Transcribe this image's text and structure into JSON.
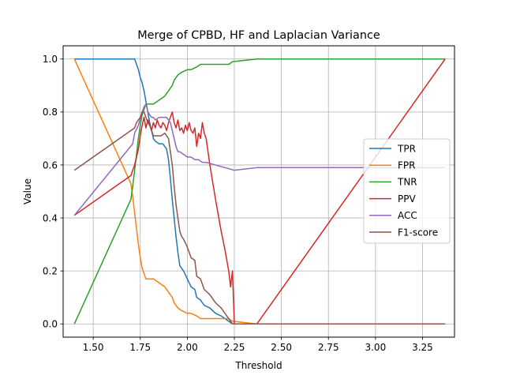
{
  "chart_data": {
    "type": "line",
    "title": "Merge of CPBD, HF and Laplacian Variance",
    "xlabel": "Threshold",
    "ylabel": "Value",
    "xlim": [
      1.34,
      3.42
    ],
    "ylim": [
      -0.05,
      1.05
    ],
    "xticks": [
      1.5,
      1.75,
      2.0,
      2.25,
      2.5,
      2.75,
      3.0,
      3.25
    ],
    "xtick_labels": [
      "1.50",
      "1.75",
      "2.00",
      "2.25",
      "2.50",
      "2.75",
      "3.00",
      "3.25"
    ],
    "yticks": [
      0.0,
      0.2,
      0.4,
      0.6,
      0.8,
      1.0
    ],
    "ytick_labels": [
      "0.0",
      "0.2",
      "0.4",
      "0.6",
      "0.8",
      "1.0"
    ],
    "grid": true,
    "legend_position": "center-right",
    "series": [
      {
        "name": "TPR",
        "color": "#1f77b4",
        "points": [
          [
            1.4,
            1.0
          ],
          [
            1.72,
            1.0
          ],
          [
            1.73,
            0.98
          ],
          [
            1.74,
            0.96
          ],
          [
            1.75,
            0.93
          ],
          [
            1.76,
            0.91
          ],
          [
            1.77,
            0.88
          ],
          [
            1.78,
            0.84
          ],
          [
            1.79,
            0.8
          ],
          [
            1.8,
            0.76
          ],
          [
            1.81,
            0.73
          ],
          [
            1.82,
            0.7
          ],
          [
            1.83,
            0.69
          ],
          [
            1.85,
            0.68
          ],
          [
            1.87,
            0.68
          ],
          [
            1.88,
            0.67
          ],
          [
            1.89,
            0.66
          ],
          [
            1.9,
            0.62
          ],
          [
            1.91,
            0.55
          ],
          [
            1.92,
            0.47
          ],
          [
            1.93,
            0.4
          ],
          [
            1.94,
            0.33
          ],
          [
            1.95,
            0.27
          ],
          [
            1.96,
            0.22
          ],
          [
            1.98,
            0.2
          ],
          [
            2.0,
            0.17
          ],
          [
            2.02,
            0.14
          ],
          [
            2.04,
            0.13
          ],
          [
            2.05,
            0.1
          ],
          [
            2.07,
            0.09
          ],
          [
            2.09,
            0.07
          ],
          [
            2.12,
            0.06
          ],
          [
            2.15,
            0.04
          ],
          [
            2.18,
            0.03
          ],
          [
            2.22,
            0.01
          ],
          [
            2.24,
            0.0
          ],
          [
            2.3,
            0.0
          ],
          [
            2.37,
            0.0
          ],
          [
            3.37,
            0.0
          ]
        ]
      },
      {
        "name": "FPR",
        "color": "#ff7f0e",
        "points": [
          [
            1.4,
            1.0
          ],
          [
            1.7,
            0.53
          ],
          [
            1.71,
            0.48
          ],
          [
            1.72,
            0.42
          ],
          [
            1.73,
            0.36
          ],
          [
            1.74,
            0.3
          ],
          [
            1.75,
            0.25
          ],
          [
            1.76,
            0.21
          ],
          [
            1.77,
            0.19
          ],
          [
            1.78,
            0.17
          ],
          [
            1.8,
            0.17
          ],
          [
            1.82,
            0.17
          ],
          [
            1.84,
            0.16
          ],
          [
            1.86,
            0.15
          ],
          [
            1.88,
            0.14
          ],
          [
            1.9,
            0.12
          ],
          [
            1.92,
            0.1
          ],
          [
            1.93,
            0.08
          ],
          [
            1.95,
            0.06
          ],
          [
            1.97,
            0.05
          ],
          [
            2.0,
            0.04
          ],
          [
            2.02,
            0.04
          ],
          [
            2.05,
            0.03
          ],
          [
            2.07,
            0.02
          ],
          [
            2.1,
            0.02
          ],
          [
            2.15,
            0.02
          ],
          [
            2.22,
            0.02
          ],
          [
            2.24,
            0.01
          ],
          [
            2.37,
            0.0
          ],
          [
            3.37,
            0.0
          ]
        ]
      },
      {
        "name": "TNR",
        "color": "#2ca02c",
        "points": [
          [
            1.4,
            0.0
          ],
          [
            1.7,
            0.47
          ],
          [
            1.71,
            0.52
          ],
          [
            1.72,
            0.58
          ],
          [
            1.73,
            0.64
          ],
          [
            1.74,
            0.7
          ],
          [
            1.75,
            0.75
          ],
          [
            1.76,
            0.79
          ],
          [
            1.77,
            0.81
          ],
          [
            1.78,
            0.83
          ],
          [
            1.8,
            0.83
          ],
          [
            1.82,
            0.83
          ],
          [
            1.84,
            0.84
          ],
          [
            1.86,
            0.85
          ],
          [
            1.88,
            0.86
          ],
          [
            1.9,
            0.88
          ],
          [
            1.92,
            0.9
          ],
          [
            1.93,
            0.92
          ],
          [
            1.95,
            0.94
          ],
          [
            1.97,
            0.95
          ],
          [
            2.0,
            0.96
          ],
          [
            2.02,
            0.96
          ],
          [
            2.05,
            0.97
          ],
          [
            2.07,
            0.98
          ],
          [
            2.1,
            0.98
          ],
          [
            2.15,
            0.98
          ],
          [
            2.22,
            0.98
          ],
          [
            2.24,
            0.99
          ],
          [
            2.37,
            1.0
          ],
          [
            3.37,
            1.0
          ]
        ]
      },
      {
        "name": "PPV",
        "color": "#d62728",
        "points": [
          [
            1.4,
            0.41
          ],
          [
            1.7,
            0.56
          ],
          [
            1.72,
            0.6
          ],
          [
            1.74,
            0.66
          ],
          [
            1.75,
            0.71
          ],
          [
            1.76,
            0.75
          ],
          [
            1.77,
            0.78
          ],
          [
            1.78,
            0.74
          ],
          [
            1.79,
            0.77
          ],
          [
            1.8,
            0.75
          ],
          [
            1.81,
            0.73
          ],
          [
            1.82,
            0.76
          ],
          [
            1.83,
            0.74
          ],
          [
            1.84,
            0.77
          ],
          [
            1.85,
            0.75
          ],
          [
            1.86,
            0.74
          ],
          [
            1.87,
            0.76
          ],
          [
            1.88,
            0.75
          ],
          [
            1.89,
            0.73
          ],
          [
            1.9,
            0.76
          ],
          [
            1.91,
            0.78
          ],
          [
            1.92,
            0.8
          ],
          [
            1.93,
            0.76
          ],
          [
            1.94,
            0.74
          ],
          [
            1.95,
            0.77
          ],
          [
            1.96,
            0.73
          ],
          [
            1.97,
            0.74
          ],
          [
            1.98,
            0.72
          ],
          [
            1.99,
            0.75
          ],
          [
            2.0,
            0.73
          ],
          [
            2.01,
            0.76
          ],
          [
            2.02,
            0.73
          ],
          [
            2.03,
            0.72
          ],
          [
            2.04,
            0.74
          ],
          [
            2.05,
            0.67
          ],
          [
            2.06,
            0.72
          ],
          [
            2.07,
            0.7
          ],
          [
            2.08,
            0.76
          ],
          [
            2.09,
            0.72
          ],
          [
            2.1,
            0.7
          ],
          [
            2.12,
            0.6
          ],
          [
            2.15,
            0.47
          ],
          [
            2.18,
            0.35
          ],
          [
            2.2,
            0.28
          ],
          [
            2.22,
            0.2
          ],
          [
            2.23,
            0.14
          ],
          [
            2.24,
            0.2
          ],
          [
            2.25,
            0.0
          ],
          [
            2.37,
            0.0
          ],
          [
            3.37,
            1.0
          ]
        ]
      },
      {
        "name": "ACC",
        "color": "#9467bd",
        "points": [
          [
            1.4,
            0.41
          ],
          [
            1.71,
            0.68
          ],
          [
            1.72,
            0.72
          ],
          [
            1.74,
            0.75
          ],
          [
            1.76,
            0.8
          ],
          [
            1.77,
            0.82
          ],
          [
            1.78,
            0.83
          ],
          [
            1.79,
            0.8
          ],
          [
            1.8,
            0.79
          ],
          [
            1.81,
            0.78
          ],
          [
            1.82,
            0.78
          ],
          [
            1.83,
            0.77
          ],
          [
            1.85,
            0.78
          ],
          [
            1.87,
            0.78
          ],
          [
            1.89,
            0.78
          ],
          [
            1.9,
            0.77
          ],
          [
            1.91,
            0.76
          ],
          [
            1.92,
            0.73
          ],
          [
            1.93,
            0.7
          ],
          [
            1.94,
            0.67
          ],
          [
            1.95,
            0.65
          ],
          [
            1.96,
            0.65
          ],
          [
            1.98,
            0.64
          ],
          [
            2.0,
            0.63
          ],
          [
            2.02,
            0.63
          ],
          [
            2.04,
            0.62
          ],
          [
            2.06,
            0.62
          ],
          [
            2.08,
            0.61
          ],
          [
            2.1,
            0.61
          ],
          [
            2.15,
            0.6
          ],
          [
            2.2,
            0.59
          ],
          [
            2.25,
            0.58
          ],
          [
            2.37,
            0.59
          ],
          [
            3.37,
            0.59
          ]
        ]
      },
      {
        "name": "F1-score",
        "color": "#8c564b",
        "points": [
          [
            1.4,
            0.58
          ],
          [
            1.72,
            0.74
          ],
          [
            1.73,
            0.76
          ],
          [
            1.74,
            0.77
          ],
          [
            1.75,
            0.78
          ],
          [
            1.76,
            0.8
          ],
          [
            1.77,
            0.8
          ],
          [
            1.78,
            0.78
          ],
          [
            1.79,
            0.76
          ],
          [
            1.8,
            0.75
          ],
          [
            1.81,
            0.73
          ],
          [
            1.82,
            0.71
          ],
          [
            1.84,
            0.71
          ],
          [
            1.86,
            0.71
          ],
          [
            1.88,
            0.72
          ],
          [
            1.89,
            0.71
          ],
          [
            1.9,
            0.7
          ],
          [
            1.91,
            0.65
          ],
          [
            1.92,
            0.6
          ],
          [
            1.93,
            0.52
          ],
          [
            1.94,
            0.45
          ],
          [
            1.95,
            0.4
          ],
          [
            1.96,
            0.35
          ],
          [
            1.97,
            0.33
          ],
          [
            1.98,
            0.32
          ],
          [
            2.0,
            0.29
          ],
          [
            2.02,
            0.25
          ],
          [
            2.04,
            0.24
          ],
          [
            2.05,
            0.18
          ],
          [
            2.07,
            0.17
          ],
          [
            2.09,
            0.13
          ],
          [
            2.12,
            0.11
          ],
          [
            2.15,
            0.08
          ],
          [
            2.18,
            0.06
          ],
          [
            2.22,
            0.02
          ],
          [
            2.24,
            0.0
          ],
          [
            2.37,
            0.0
          ],
          [
            3.37,
            0.0
          ]
        ]
      }
    ]
  }
}
